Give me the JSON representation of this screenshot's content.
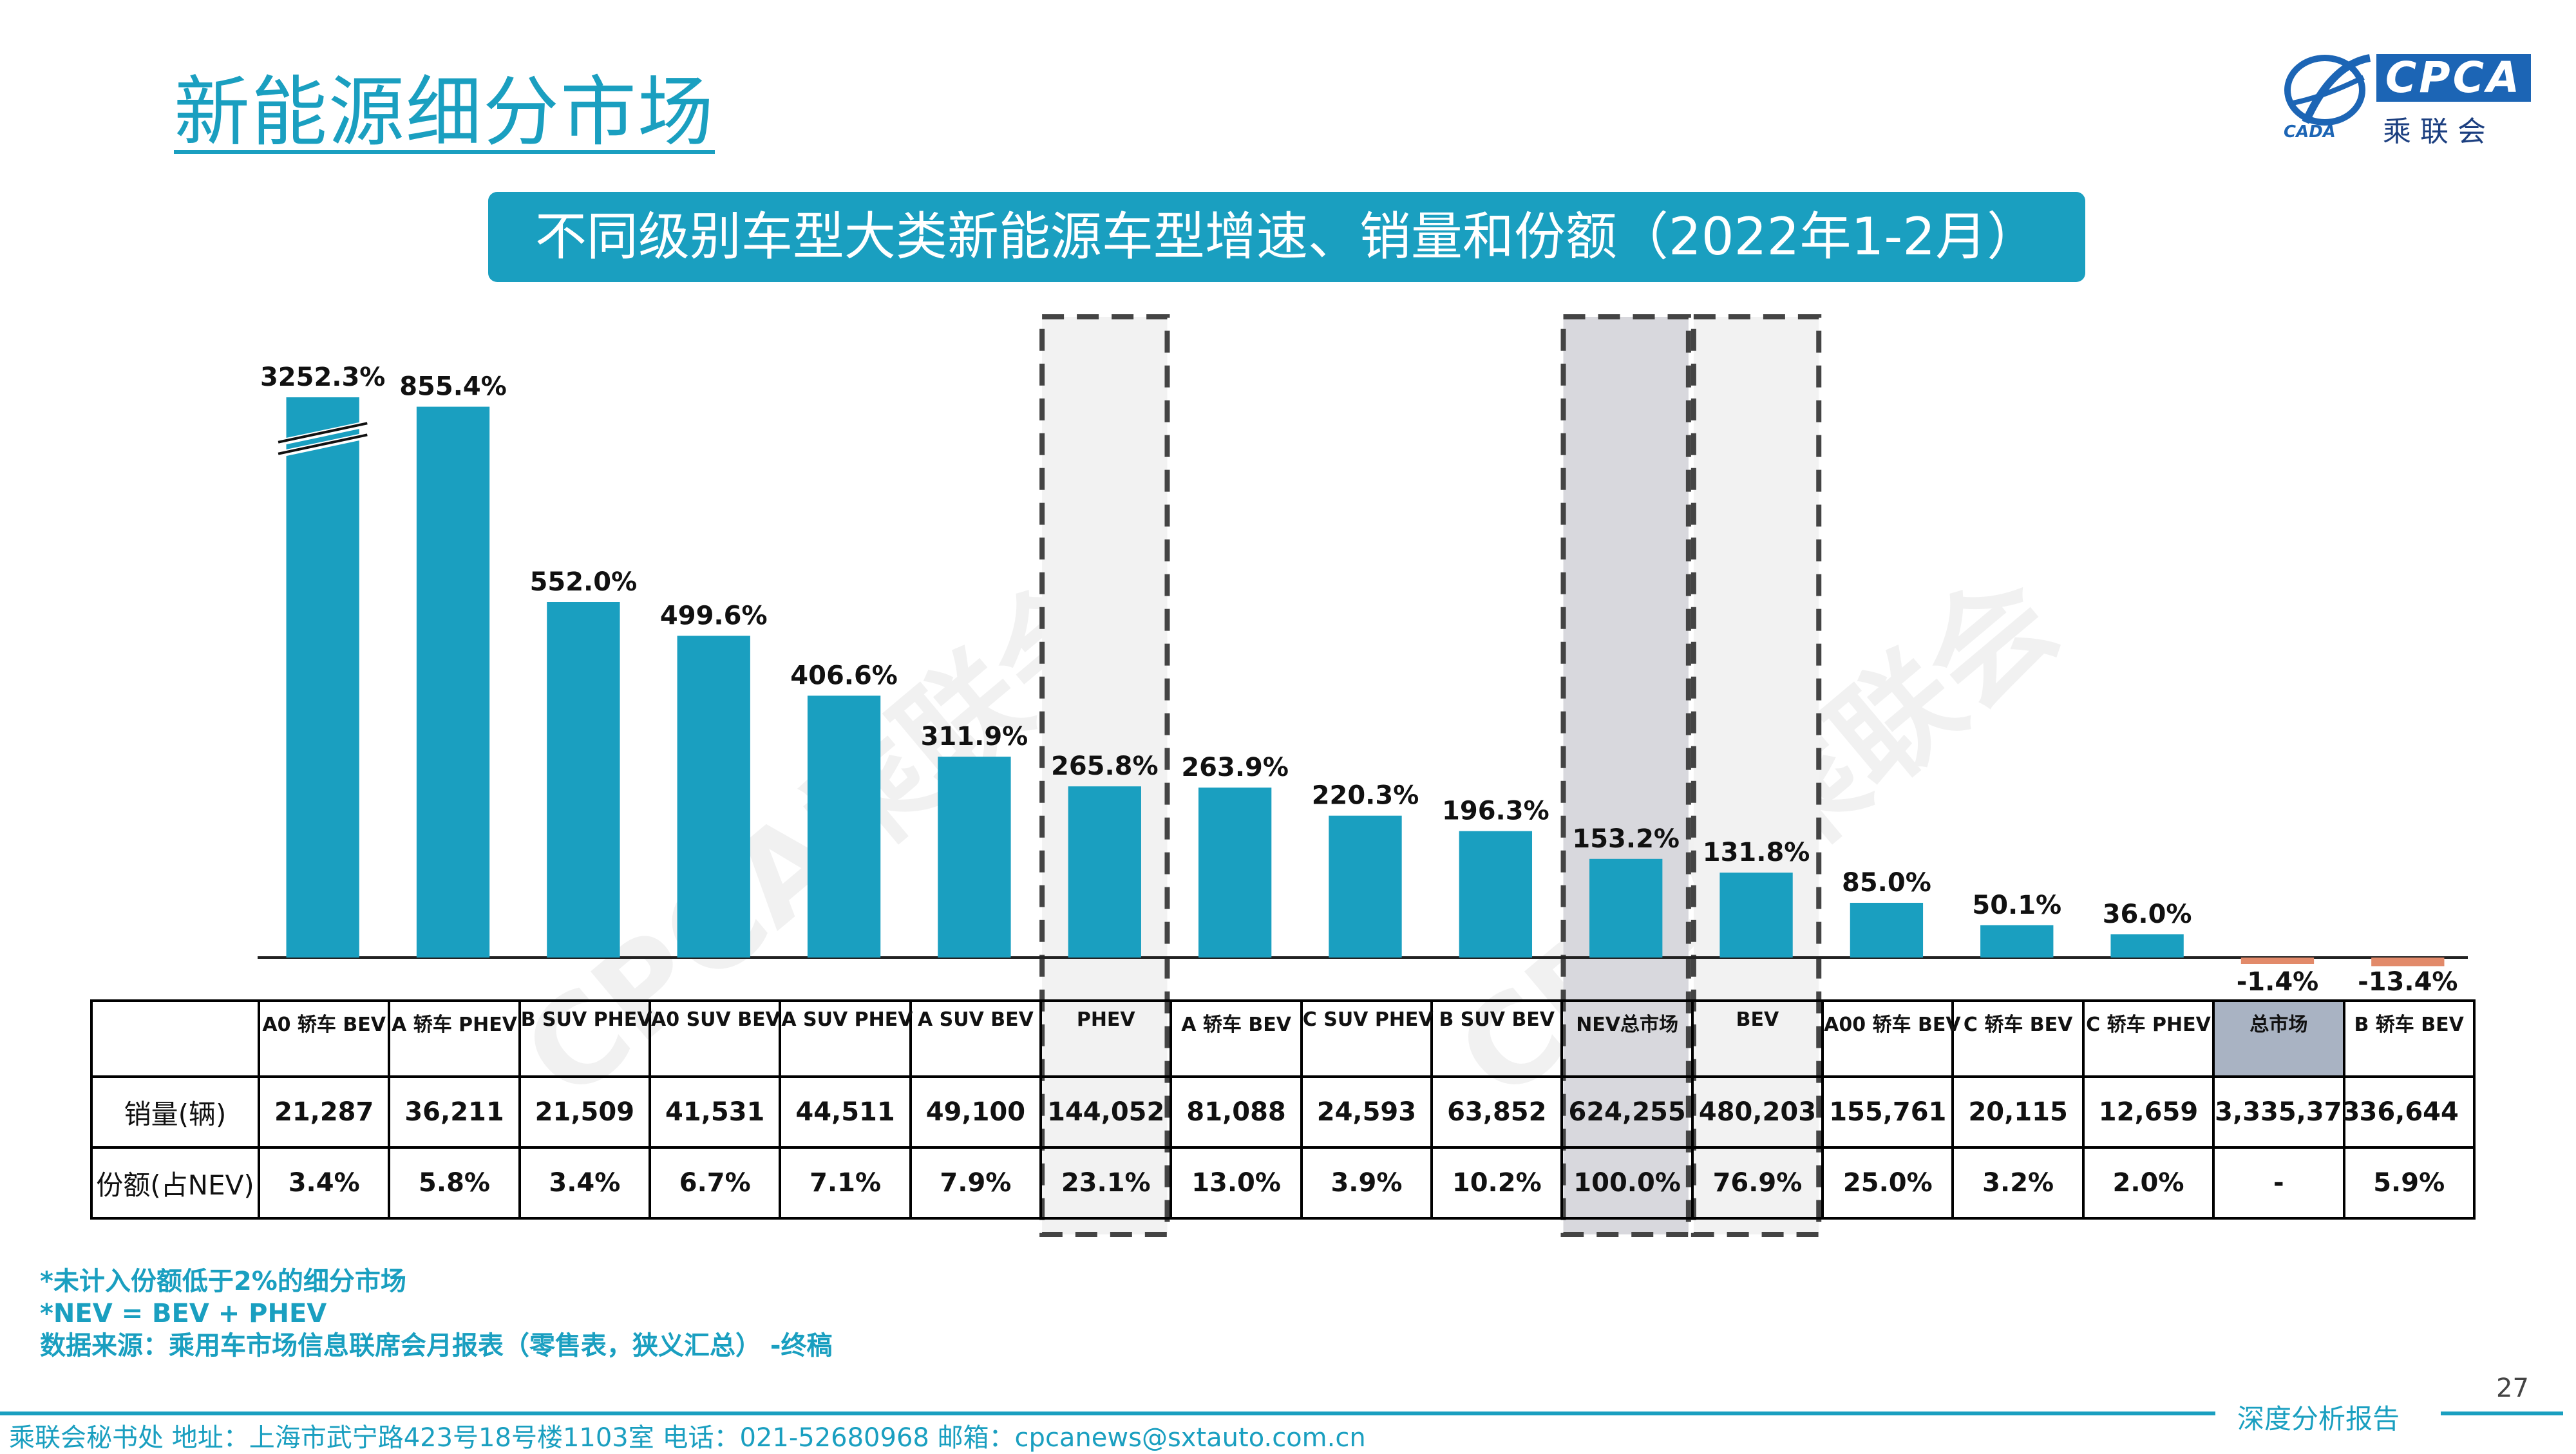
{
  "header": {
    "title": "新能源细分市场",
    "logo_text": "CPCA",
    "logo_cn": "乘联会",
    "logo_small": "CADA"
  },
  "subtitle": "不同级别车型大类新能源车型增速、销量和份额（2022年1-2月）",
  "watermark": "CPCA乘联会",
  "colors": {
    "accent": "#1a9fc0",
    "bar": "#1a9fc0",
    "negative_bar": "#e28a6a",
    "highlight_light": "#f2f2f2",
    "highlight_dark": "#d8d8dd",
    "total_cell": "#a9b3c3"
  },
  "chart_data": {
    "type": "bar",
    "categories": [
      "A0 轿车 BEV",
      "A 轿车 PHEV",
      "B SUV PHEV",
      "A0 SUV BEV",
      "A SUV PHEV",
      "A SUV BEV",
      "PHEV",
      "A 轿车 BEV",
      "C SUV PHEV",
      "B SUV BEV",
      "NEV总市场",
      "BEV",
      "A00 轿车 BEV",
      "C 轿车 BEV",
      "C 轿车 PHEV",
      "总市场",
      "B 轿车 BEV"
    ],
    "values": [
      3252.3,
      855.4,
      552.0,
      499.6,
      406.6,
      311.9,
      265.8,
      263.9,
      220.3,
      196.3,
      153.2,
      131.8,
      85.0,
      50.1,
      36.0,
      -1.4,
      -13.4
    ],
    "data_labels": [
      "3252.3%",
      "855.4%",
      "552.0%",
      "499.6%",
      "406.6%",
      "311.9%",
      "265.8%",
      "263.9%",
      "220.3%",
      "196.3%",
      "153.2%",
      "131.8%",
      "85.0%",
      "50.1%",
      "36.0%",
      "-1.4%",
      "-13.4%"
    ],
    "axis_break": true,
    "highlighted": [
      "PHEV",
      "NEV总市场",
      "BEV"
    ],
    "table": {
      "rows": [
        {
          "label": "销量(辆)",
          "values": [
            "21,287",
            "36,211",
            "21,509",
            "41,531",
            "44,511",
            "49,100",
            "144,052",
            "81,088",
            "24,593",
            "63,852",
            "624,255",
            "480,203",
            "155,761",
            "20,115",
            "12,659",
            "3,335,373",
            "36,644"
          ]
        },
        {
          "label": "份额(占NEV)",
          "values": [
            "3.4%",
            "5.8%",
            "3.4%",
            "6.7%",
            "7.1%",
            "7.9%",
            "23.1%",
            "13.0%",
            "3.9%",
            "10.2%",
            "100.0%",
            "76.9%",
            "25.0%",
            "3.2%",
            "2.0%",
            "-",
            "5.9%"
          ]
        }
      ]
    }
  },
  "notes": [
    "*未计入份额低于2%的细分市场",
    "*NEV = BEV + PHEV",
    "数据来源：乘用车市场信息联席会月报表（零售表，狭义汇总） -终稿"
  ],
  "page_number": "27",
  "footer": {
    "tag": "深度分析报告",
    "text": "乘联会秘书处   地址：上海市武宁路423号18号楼1103室  电话：021-52680968   邮箱：cpcanews@sxtauto.com.cn"
  }
}
